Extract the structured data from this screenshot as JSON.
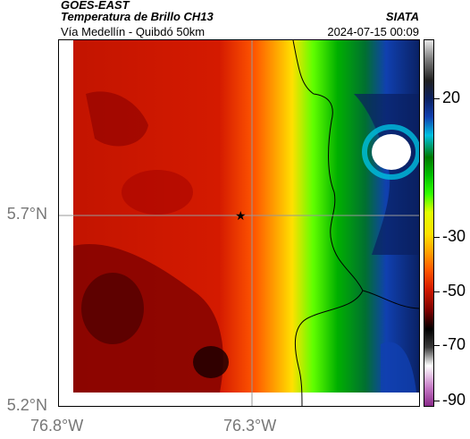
{
  "header": {
    "source": "GOES-EAST",
    "product": "Temperatura de Brillo CH13",
    "region": "Vía Medellín - Quibdó 50km",
    "org": "SIATA",
    "datetime": "2024-07-15 00:09"
  },
  "map": {
    "lat_labels": [
      "5.7°N",
      "5.2°N"
    ],
    "lon_labels": [
      "76.8°W",
      "76.3°W"
    ],
    "marker": "star"
  },
  "colorbar": {
    "labels": [
      "20",
      "-30",
      "-50",
      "-70",
      "-90"
    ],
    "colors": [
      "#8a2a8a",
      "#c57ac5",
      "#ffffff",
      "#3a3a3a",
      "#000000",
      "#7a0000",
      "#d41a00",
      "#ff5500",
      "#ffa000",
      "#ffe000",
      "#e0ff00",
      "#30ff00",
      "#00c000",
      "#007a00",
      "#00c0e0",
      "#1040b0",
      "#0a2060",
      "#202020",
      "#808080",
      "#e8e8e8"
    ]
  }
}
